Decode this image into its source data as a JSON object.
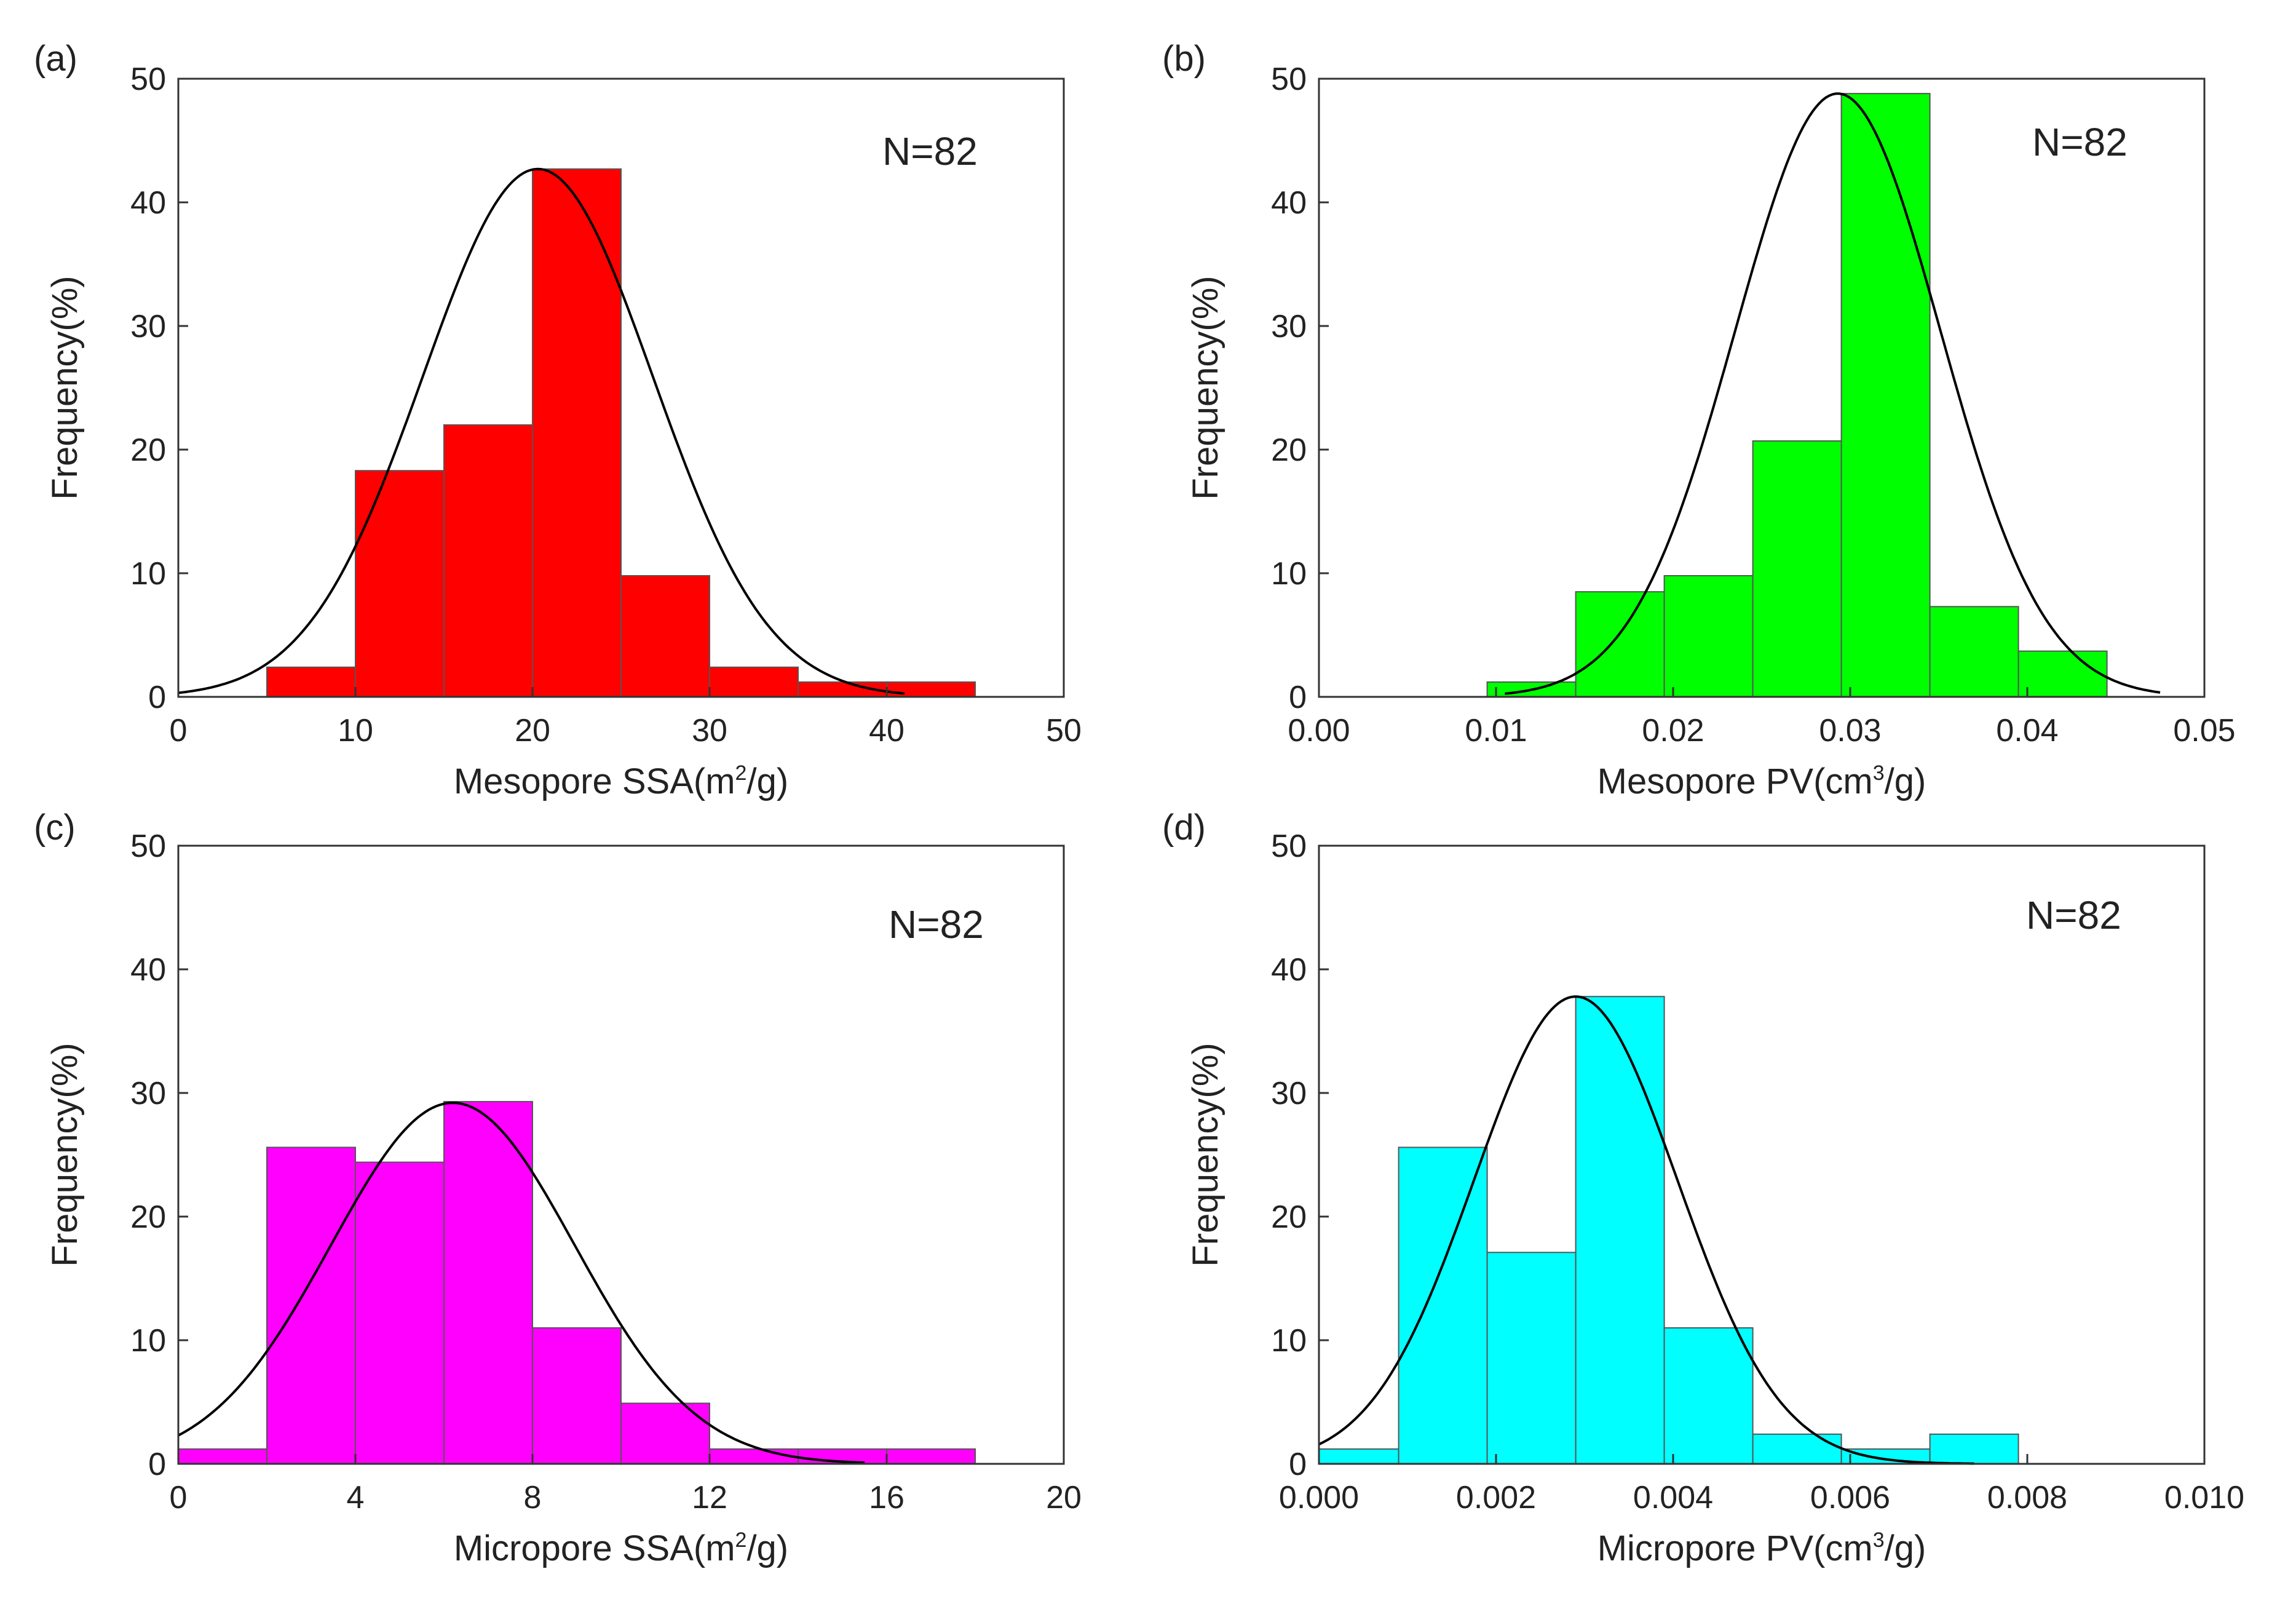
{
  "chart_data": [
    {
      "panel": "(a)",
      "type": "bar",
      "title": "",
      "annotation": "N=82",
      "xlabel": "Mesopore SSA(m",
      "xlabel_sup": "2",
      "xlabel_tail": "/g)",
      "ylabel": "Frequency(%)",
      "xlim": [
        0,
        50
      ],
      "ylim": [
        0,
        50
      ],
      "xticks": [
        0,
        10,
        20,
        30,
        40,
        50
      ],
      "xtick_labels": [
        "0",
        "10",
        "20",
        "30",
        "40",
        "50"
      ],
      "yticks": [
        0,
        10,
        20,
        30,
        40,
        50
      ],
      "ytick_labels": [
        "0",
        "10",
        "20",
        "30",
        "40",
        "50"
      ],
      "bin_edges": [
        5,
        10,
        15,
        20,
        25,
        30,
        35,
        40,
        45
      ],
      "values": [
        2.4,
        18.3,
        22.0,
        42.7,
        9.8,
        2.4,
        1.2,
        1.2
      ],
      "bar_color": "#ff0000",
      "fit": {
        "type": "normal",
        "mean": 20.3,
        "peak": 42.7,
        "sd": 6.5,
        "range": [
          0,
          41
        ]
      }
    },
    {
      "panel": "(b)",
      "type": "bar",
      "title": "",
      "annotation": "N=82",
      "xlabel": "Mesopore PV(cm",
      "xlabel_sup": "3",
      "xlabel_tail": "/g)",
      "ylabel": "Frequency(%)",
      "xlim": [
        0,
        0.05
      ],
      "ylim": [
        0,
        50
      ],
      "xticks": [
        0,
        0.01,
        0.02,
        0.03,
        0.04,
        0.05
      ],
      "xtick_labels": [
        "0.00",
        "0.01",
        "0.02",
        "0.03",
        "0.04",
        "0.05"
      ],
      "yticks": [
        0,
        10,
        20,
        30,
        40,
        50
      ],
      "ytick_labels": [
        "0",
        "10",
        "20",
        "30",
        "40",
        "50"
      ],
      "bin_edges": [
        0.0095,
        0.0145,
        0.0195,
        0.0245,
        0.0295,
        0.0345,
        0.0395,
        0.0445
      ],
      "values": [
        1.2,
        8.5,
        9.8,
        20.7,
        48.8,
        7.3,
        3.7
      ],
      "bar_color": "#00ff00",
      "fit": {
        "type": "normal",
        "mean": 0.0293,
        "peak": 48.8,
        "sd": 0.0058,
        "range": [
          0.0105,
          0.0475
        ]
      }
    },
    {
      "panel": "(c)",
      "type": "bar",
      "title": "",
      "annotation": "N=82",
      "xlabel": "Micropore SSA(m",
      "xlabel_sup": "2",
      "xlabel_tail": "/g)",
      "ylabel": "Frequency(%)",
      "xlim": [
        0,
        20
      ],
      "ylim": [
        0,
        50
      ],
      "xticks": [
        0,
        4,
        8,
        12,
        16,
        20
      ],
      "xtick_labels": [
        "0",
        "4",
        "8",
        "12",
        "16",
        "20"
      ],
      "yticks": [
        0,
        10,
        20,
        30,
        40,
        50
      ],
      "ytick_labels": [
        "0",
        "10",
        "20",
        "30",
        "40",
        "50"
      ],
      "bin_edges": [
        0,
        2,
        4,
        6,
        8,
        10,
        12,
        14,
        16,
        18
      ],
      "values": [
        1.2,
        25.6,
        24.4,
        29.3,
        11.0,
        4.9,
        1.2,
        1.2,
        1.2
      ],
      "bar_color": "#ff00ff",
      "fit": {
        "type": "normal",
        "mean": 6.2,
        "peak": 29.2,
        "sd": 2.75,
        "range": [
          0,
          15.5
        ]
      }
    },
    {
      "panel": "(d)",
      "type": "bar",
      "title": "",
      "annotation": "N=82",
      "xlabel": "Micropore PV(cm",
      "xlabel_sup": "3",
      "xlabel_tail": "/g)",
      "ylabel": "Frequency(%)",
      "xlim": [
        0,
        0.01
      ],
      "ylim": [
        0,
        50
      ],
      "xticks": [
        0,
        0.002,
        0.004,
        0.006,
        0.008,
        0.01
      ],
      "xtick_labels": [
        "0.000",
        "0.002",
        "0.004",
        "0.006",
        "0.008",
        "0.010"
      ],
      "yticks": [
        0,
        10,
        20,
        30,
        40,
        50
      ],
      "ytick_labels": [
        "0",
        "10",
        "20",
        "30",
        "40",
        "50"
      ],
      "bin_edges": [
        0,
        0.0009,
        0.0019,
        0.0029,
        0.0039,
        0.0049,
        0.0059,
        0.0069,
        0.0079
      ],
      "values": [
        1.2,
        25.6,
        17.1,
        37.8,
        11.0,
        2.4,
        1.2,
        2.4
      ],
      "bar_color": "#00ffff",
      "fit": {
        "type": "normal",
        "mean": 0.0029,
        "peak": 37.8,
        "sd": 0.00115,
        "range": [
          0,
          0.0074
        ]
      }
    }
  ]
}
